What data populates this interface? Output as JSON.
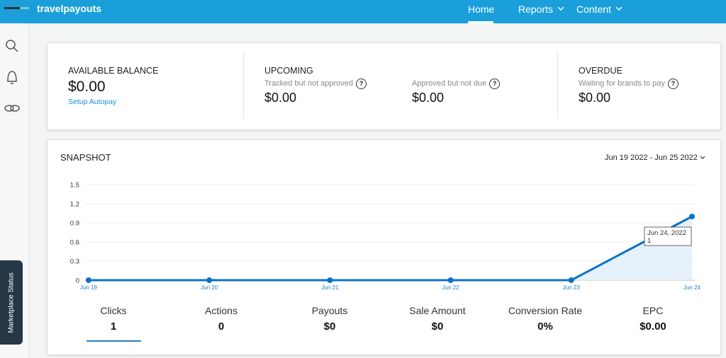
{
  "nav": {
    "brand": "travelpayouts",
    "items": [
      "Home",
      "Reports",
      "Content"
    ]
  },
  "sidebar": {
    "tab": "Marketplace Status"
  },
  "help": "?",
  "balance": {
    "available": {
      "title": "AVAILABLE BALANCE",
      "amount": "$0.00",
      "link": "Setup Autopay"
    },
    "upcoming": {
      "title": "UPCOMING",
      "items": [
        {
          "label": "Tracked but not approved",
          "amount": "$0.00"
        },
        {
          "label": "Approved but not due",
          "amount": "$0.00"
        }
      ]
    },
    "overdue": {
      "title": "OVERDUE",
      "label": "Waiting for brands to pay",
      "amount": "$0.00"
    }
  },
  "snapshot": {
    "title": "SNAPSHOT",
    "date_range": "Jun 19 2022 - Jun 25 2022",
    "tooltip": {
      "title": "Jun 24, 2022"
    },
    "metrics": [
      {
        "label": "Clicks",
        "value": "1"
      },
      {
        "label": "Actions",
        "value": "0"
      },
      {
        "label": "Payouts",
        "value": "$0"
      },
      {
        "label": "Sale Amount",
        "value": "$0"
      },
      {
        "label": "Conversion Rate",
        "value": "0%"
      },
      {
        "label": "EPC",
        "value": "$0.00"
      }
    ]
  },
  "chart_data": {
    "type": "line",
    "categories": [
      "Jun 19",
      "Jun 20",
      "Jun 21",
      "Jun 22",
      "Jun 23",
      "Jun 24"
    ],
    "values": [
      0,
      0,
      0,
      0,
      0,
      1
    ],
    "color": "#0b72c4",
    "ylim": [
      0,
      1.5
    ],
    "yticks": [
      0,
      0.3,
      0.6,
      0.9,
      1.2,
      1.5
    ],
    "grid": true
  }
}
